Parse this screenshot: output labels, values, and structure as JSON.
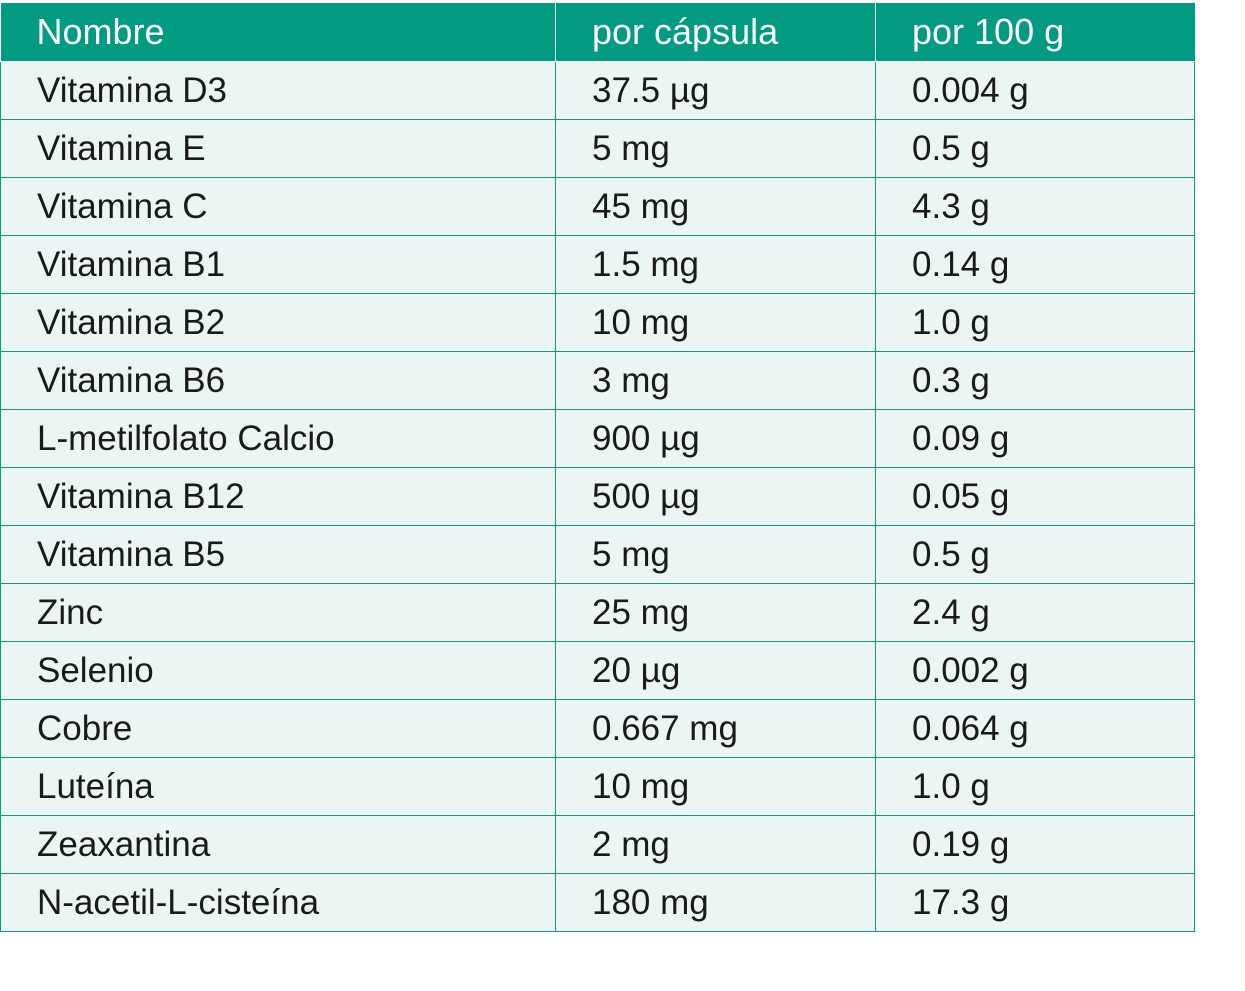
{
  "table": {
    "headers": [
      "Nombre",
      "por cápsula",
      "por 100 g"
    ],
    "rows": [
      [
        "Vitamina D3",
        "37.5 µg",
        "0.004 g"
      ],
      [
        "Vitamina E",
        "5 mg",
        "0.5 g"
      ],
      [
        "Vitamina C",
        "45 mg",
        "4.3 g"
      ],
      [
        "Vitamina B1",
        "1.5 mg",
        "0.14 g"
      ],
      [
        "Vitamina B2",
        "10 mg",
        "1.0 g"
      ],
      [
        "Vitamina B6",
        "3 mg",
        "0.3 g"
      ],
      [
        "L-metilfolato Calcio",
        "900 µg",
        "0.09 g"
      ],
      [
        "Vitamina B12",
        "500 µg",
        "0.05 g"
      ],
      [
        "Vitamina B5",
        "5 mg",
        "0.5 g"
      ],
      [
        "Zinc",
        "25 mg",
        "2.4 g"
      ],
      [
        "Selenio",
        "20 µg",
        "0.002 g"
      ],
      [
        "Cobre",
        "0.667 mg",
        "0.064 g"
      ],
      [
        "Luteína",
        "10 mg",
        "1.0 g"
      ],
      [
        "Zeaxantina",
        "2 mg",
        "0.19 g"
      ],
      [
        "N-acetil-L-cisteína",
        "180 mg",
        "17.3 g"
      ]
    ]
  }
}
